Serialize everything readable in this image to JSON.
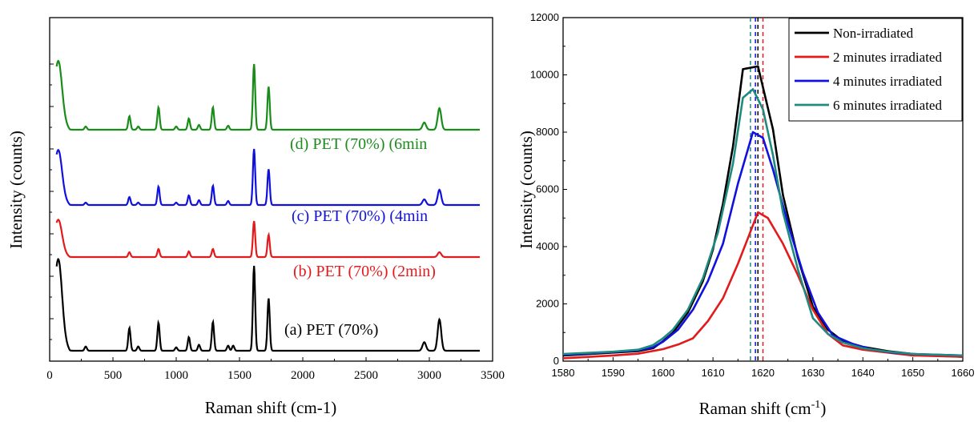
{
  "chart_data": [
    {
      "type": "line",
      "xlabel": "Raman shift (cm-1)",
      "ylabel": "Intensity (counts)",
      "xlim": [
        0,
        3500
      ],
      "x_ticks": [
        0,
        500,
        1000,
        1500,
        2000,
        2500,
        3000,
        3500
      ],
      "y_tick_labels_shown": false,
      "stacked_offset": true,
      "grid": false,
      "series": [
        {
          "label": "(a) PET (70%)",
          "color": "#000000",
          "peaks": [
            [
              70,
              88
            ],
            [
              285,
              5
            ],
            [
              630,
              27
            ],
            [
              700,
              5
            ],
            [
              860,
              33
            ],
            [
              1000,
              4
            ],
            [
              1100,
              16
            ],
            [
              1180,
              7
            ],
            [
              1290,
              34
            ],
            [
              1410,
              6
            ],
            [
              1450,
              6
            ],
            [
              1615,
              100
            ],
            [
              1730,
              62
            ],
            [
              2960,
              10
            ],
            [
              3080,
              37
            ]
          ]
        },
        {
          "label": "(b) PET (70%) (2min)",
          "color": "#e31a1c",
          "peaks": [
            [
              70,
              38
            ],
            [
              630,
              6
            ],
            [
              860,
              10
            ],
            [
              1100,
              7
            ],
            [
              1290,
              10
            ],
            [
              1615,
              45
            ],
            [
              1730,
              28
            ],
            [
              3080,
              6
            ]
          ]
        },
        {
          "label": "(c) PET (70%) (4min",
          "color": "#1111dd",
          "peaks": [
            [
              70,
              56
            ],
            [
              285,
              3
            ],
            [
              630,
              10
            ],
            [
              700,
              3
            ],
            [
              860,
              23
            ],
            [
              1000,
              3
            ],
            [
              1100,
              12
            ],
            [
              1180,
              6
            ],
            [
              1290,
              24
            ],
            [
              1410,
              5
            ],
            [
              1615,
              70
            ],
            [
              1730,
              45
            ],
            [
              2960,
              7
            ],
            [
              3080,
              19
            ]
          ]
        },
        {
          "label": "(d) PET (70%) (6min",
          "color": "#1a8c1a",
          "peaks": [
            [
              70,
              70
            ],
            [
              285,
              4
            ],
            [
              630,
              17
            ],
            [
              700,
              4
            ],
            [
              860,
              28
            ],
            [
              1000,
              4
            ],
            [
              1100,
              14
            ],
            [
              1180,
              6
            ],
            [
              1290,
              28
            ],
            [
              1410,
              5
            ],
            [
              1615,
              82
            ],
            [
              1730,
              54
            ],
            [
              2960,
              9
            ],
            [
              3080,
              27
            ]
          ]
        }
      ]
    },
    {
      "type": "line",
      "xlabel": "Raman shift (cm-1)",
      "ylabel": "Intensity (counts)",
      "xlim": [
        1580,
        1660
      ],
      "ylim": [
        0,
        12000
      ],
      "x_ticks": [
        1580,
        1590,
        1600,
        1610,
        1620,
        1630,
        1640,
        1650,
        1660
      ],
      "y_ticks": [
        0,
        2000,
        4000,
        6000,
        8000,
        10000,
        12000
      ],
      "legend_position": "top-right",
      "grid": false,
      "series": [
        {
          "name": "Non-irradiated",
          "color": "#000000",
          "x": [
            1580,
            1590,
            1595,
            1598,
            1600,
            1602,
            1605,
            1608,
            1610,
            1612,
            1614,
            1616,
            1619,
            1622,
            1624,
            1627,
            1630,
            1633,
            1636,
            1640,
            1645,
            1650,
            1655,
            1660
          ],
          "y": [
            200,
            300,
            350,
            450,
            700,
            1000,
            1700,
            2800,
            3900,
            5500,
            7500,
            10200,
            10300,
            8100,
            5800,
            3600,
            1900,
            1100,
            700,
            500,
            350,
            250,
            200,
            150
          ],
          "peak_marker": 1619
        },
        {
          "name": "2 minutes irradiated",
          "color": "#e31a1c",
          "x": [
            1580,
            1590,
            1595,
            1600,
            1603,
            1606,
            1609,
            1612,
            1615,
            1617,
            1619,
            1621,
            1624,
            1627,
            1630,
            1633,
            1636,
            1640,
            1645,
            1650,
            1660
          ],
          "y": [
            100,
            200,
            260,
            420,
            580,
            800,
            1400,
            2200,
            3400,
            4300,
            5200,
            5000,
            4100,
            3000,
            1800,
            950,
            550,
            400,
            300,
            200,
            150
          ],
          "peak_marker": 1620
        },
        {
          "name": "4 minutes irradiated",
          "color": "#1111dd",
          "x": [
            1580,
            1590,
            1595,
            1598,
            1600,
            1603,
            1606,
            1609,
            1612,
            1615,
            1618,
            1620,
            1622,
            1625,
            1628,
            1631,
            1634,
            1638,
            1642,
            1646,
            1650,
            1660
          ],
          "y": [
            220,
            320,
            380,
            480,
            680,
            1100,
            1800,
            2800,
            4100,
            6200,
            8000,
            7800,
            6700,
            4800,
            3100,
            1700,
            900,
            600,
            400,
            300,
            250,
            200
          ],
          "peak_marker": 1618.5
        },
        {
          "name": "6 minutes irradiated",
          "color": "#1f8a80",
          "x": [
            1580,
            1590,
            1595,
            1598,
            1600,
            1602,
            1605,
            1608,
            1611,
            1614,
            1616,
            1618,
            1620,
            1622,
            1624,
            1627,
            1630,
            1633,
            1636,
            1640,
            1645,
            1650,
            1660
          ],
          "y": [
            250,
            330,
            400,
            560,
            800,
            1100,
            1800,
            2900,
            4500,
            6900,
            9200,
            9500,
            8800,
            7200,
            5200,
            3200,
            1500,
            950,
            650,
            450,
            330,
            250,
            200
          ],
          "peak_marker": 1617.5
        }
      ]
    }
  ]
}
